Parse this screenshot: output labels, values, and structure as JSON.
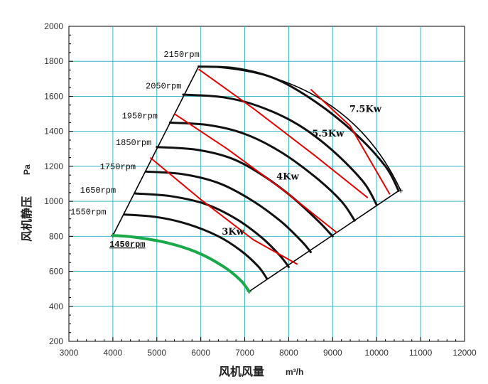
{
  "chart_data": {
    "type": "line",
    "title": "",
    "xlabel": "风机风量",
    "xunit": "m³/h",
    "ylabel": "风机静压",
    "yunit": "Pa",
    "xlim": [
      3000,
      12000
    ],
    "ylim": [
      200,
      2000
    ],
    "xticks": [
      3000,
      4000,
      5000,
      6000,
      7000,
      8000,
      9000,
      10000,
      11000,
      12000
    ],
    "yticks": [
      200,
      400,
      600,
      800,
      1000,
      1200,
      1400,
      1600,
      1800,
      2000
    ],
    "grid": true,
    "speed_curves": [
      {
        "name": "1450rpm",
        "color": "#e60000",
        "underline": true,
        "label_at": [
          3800,
          740
        ],
        "points": [
          [
            4000,
            805
          ],
          [
            4500,
            795
          ],
          [
            5200,
            765
          ],
          [
            5900,
            710
          ],
          [
            6500,
            630
          ],
          [
            6900,
            550
          ],
          [
            7100,
            485
          ]
        ]
      },
      {
        "name": "1550rpm",
        "color": "#111111",
        "label_at": [
          3850,
          925
        ],
        "points": [
          [
            4250,
            925
          ],
          [
            5000,
            910
          ],
          [
            5700,
            870
          ],
          [
            6400,
            800
          ],
          [
            6900,
            720
          ],
          [
            7300,
            630
          ],
          [
            7500,
            560
          ]
        ]
      },
      {
        "name": "1650rpm",
        "color": "#111111",
        "label_at": [
          4070,
          1050
        ],
        "points": [
          [
            4500,
            1045
          ],
          [
            5300,
            1030
          ],
          [
            6100,
            985
          ],
          [
            6800,
            900
          ],
          [
            7400,
            790
          ],
          [
            7800,
            690
          ],
          [
            8000,
            625
          ]
        ]
      },
      {
        "name": "1750rpm",
        "color": "#111111",
        "label_at": [
          4520,
          1183
        ],
        "points": [
          [
            4750,
            1170
          ],
          [
            5600,
            1155
          ],
          [
            6400,
            1105
          ],
          [
            7100,
            1015
          ],
          [
            7800,
            890
          ],
          [
            8300,
            770
          ],
          [
            8500,
            710
          ]
        ]
      },
      {
        "name": "1850rpm",
        "color": "#111111",
        "label_at": [
          4880,
          1322
        ],
        "points": [
          [
            5000,
            1310
          ],
          [
            5900,
            1295
          ],
          [
            6700,
            1245
          ],
          [
            7400,
            1150
          ],
          [
            8100,
            1020
          ],
          [
            8700,
            880
          ],
          [
            9000,
            800
          ]
        ]
      },
      {
        "name": "1950rpm",
        "color": "#111111",
        "label_at": [
          5020,
          1473
        ],
        "points": [
          [
            5300,
            1450
          ],
          [
            6200,
            1435
          ],
          [
            7000,
            1385
          ],
          [
            7800,
            1285
          ],
          [
            8600,
            1140
          ],
          [
            9200,
            1000
          ],
          [
            9500,
            890
          ]
        ]
      },
      {
        "name": "2050rpm",
        "color": "#111111",
        "label_at": [
          5560,
          1645
        ],
        "points": [
          [
            5600,
            1610
          ],
          [
            6500,
            1595
          ],
          [
            7300,
            1545
          ],
          [
            8200,
            1440
          ],
          [
            9000,
            1290
          ],
          [
            9700,
            1110
          ],
          [
            10000,
            980
          ]
        ]
      },
      {
        "name": "2150rpm",
        "color": "#111111",
        "label_at": [
          5970,
          1825
        ],
        "points": [
          [
            5950,
            1770
          ],
          [
            6800,
            1760
          ],
          [
            7700,
            1700
          ],
          [
            8600,
            1570
          ],
          [
            9500,
            1390
          ],
          [
            10200,
            1200
          ],
          [
            10500,
            1060
          ]
        ]
      }
    ],
    "power_lines": [
      {
        "name": "3Kw",
        "color": "#e60000",
        "label_at": [
          6480,
          810
        ],
        "points": [
          [
            4850,
            1250
          ],
          [
            6000,
            1010
          ],
          [
            7200,
            780
          ],
          [
            8200,
            640
          ]
        ]
      },
      {
        "name": "4Kw",
        "color": "#e60000",
        "label_at": [
          7720,
          1125
        ],
        "points": [
          [
            5400,
            1500
          ],
          [
            6600,
            1300
          ],
          [
            7900,
            1060
          ],
          [
            9100,
            820
          ]
        ]
      },
      {
        "name": "5.5Kw",
        "color": "#e60000",
        "label_at": [
          8530,
          1370
        ],
        "points": [
          [
            5950,
            1755
          ],
          [
            7200,
            1530
          ],
          [
            8600,
            1260
          ],
          [
            9800,
            1020
          ]
        ]
      },
      {
        "name": "7.5Kw",
        "color": "#e60000",
        "label_at": [
          9380,
          1510
        ],
        "points": [
          [
            8500,
            1640
          ],
          [
            9400,
            1430
          ],
          [
            10300,
            1040
          ]
        ]
      }
    ]
  }
}
